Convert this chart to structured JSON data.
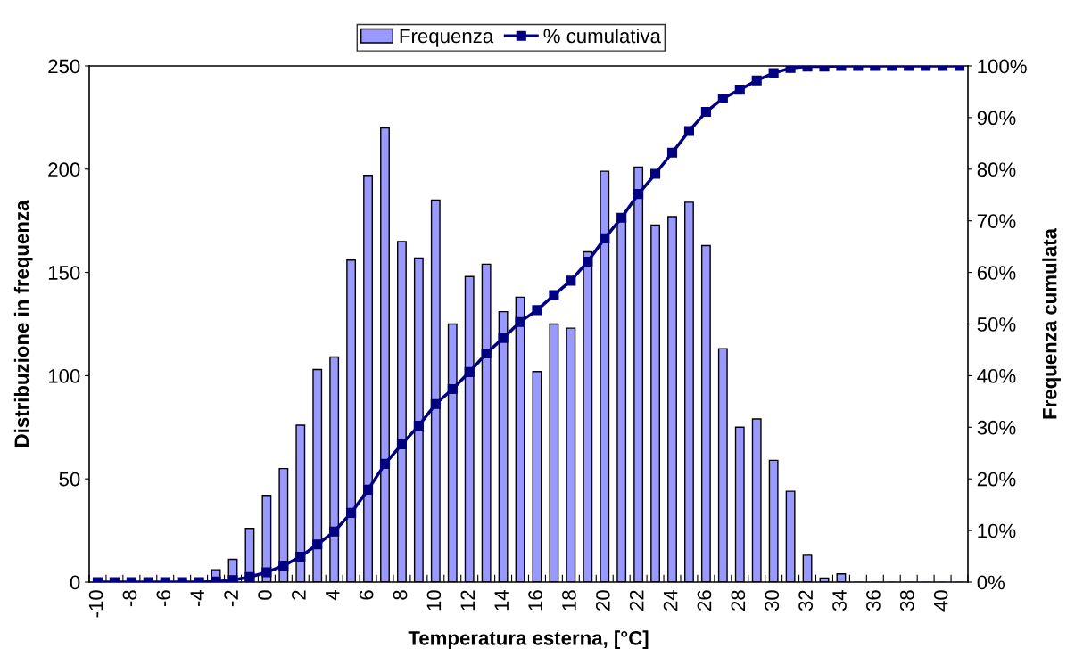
{
  "chart_data": {
    "type": "bar",
    "xlabel": "Temperatura esterna, [°C]",
    "ylabel": "Distribuzione in frequenza",
    "y2label": "Frequenza cumulata",
    "categories": [
      "-10",
      null,
      "-8",
      null,
      "-6",
      null,
      "-4",
      null,
      "-2",
      null,
      "0",
      null,
      "2",
      null,
      "4",
      null,
      "6",
      null,
      "8",
      null,
      "10",
      null,
      "12",
      null,
      "14",
      null,
      "16",
      null,
      "18",
      null,
      "20",
      null,
      "22",
      null,
      "24",
      null,
      "26",
      null,
      "28",
      null,
      "30",
      null,
      "32",
      null,
      "34",
      null,
      "36",
      null,
      "38",
      null,
      "40",
      null
    ],
    "series": [
      {
        "name": "Frequenza",
        "color": "#9999ff",
        "values": [
          0,
          0,
          0,
          0,
          0,
          0,
          0,
          6,
          11,
          26,
          42,
          55,
          76,
          103,
          109,
          156,
          197,
          220,
          165,
          157,
          185,
          125,
          148,
          154,
          131,
          138,
          102,
          125,
          123,
          160,
          199,
          175,
          201,
          173,
          177,
          184,
          163,
          113,
          75,
          79,
          59,
          44,
          13,
          2,
          4,
          0,
          0,
          0,
          0,
          0,
          0,
          0
        ]
      },
      {
        "name": "% cumulativa",
        "type": "line",
        "axis": "y2",
        "color": "#000080",
        "marker": "square",
        "line_style": "solid",
        "values": [
          0,
          0,
          0,
          0,
          0,
          0,
          0,
          0.1,
          0.4,
          1.0,
          1.9,
          3.2,
          4.9,
          7.3,
          9.8,
          13.4,
          17.9,
          22.9,
          26.7,
          30.3,
          34.5,
          37.4,
          40.7,
          44.3,
          47.3,
          50.4,
          52.7,
          55.6,
          58.4,
          62.1,
          66.6,
          70.6,
          75.2,
          79.1,
          83.2,
          87.4,
          91.1,
          93.7,
          95.4,
          97.2,
          98.6,
          99.6,
          99.9,
          99.9,
          100,
          100,
          100,
          100,
          100,
          100,
          100,
          100
        ]
      }
    ],
    "ylim": [
      0,
      250
    ],
    "yticks": [
      0,
      50,
      100,
      150,
      200,
      250
    ],
    "y2lim": [
      0,
      100
    ],
    "y2ticks": [
      {
        "value": 0,
        "label": "0%"
      },
      {
        "value": 10,
        "label": "10%"
      },
      {
        "value": 20,
        "label": "20%"
      },
      {
        "value": 30,
        "label": "30%"
      },
      {
        "value": 40,
        "label": "40%"
      },
      {
        "value": 50,
        "label": "50%"
      },
      {
        "value": 60,
        "label": "60%"
      },
      {
        "value": 70,
        "label": "70%"
      },
      {
        "value": 80,
        "label": "80%"
      },
      {
        "value": 90,
        "label": "90%"
      },
      {
        "value": 100,
        "label": "100%"
      }
    ],
    "grid": false,
    "legend": "top"
  }
}
